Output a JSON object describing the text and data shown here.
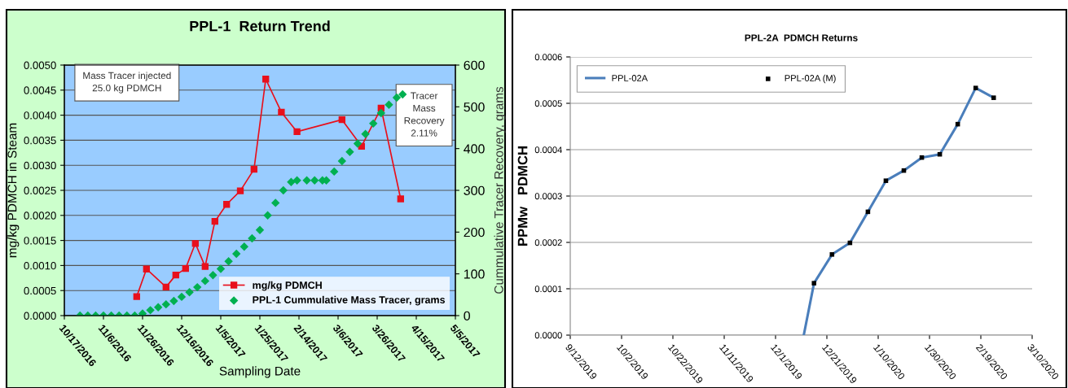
{
  "chart_data": [
    {
      "type": "line",
      "title": "PPL-1  Return Trend",
      "xlabel": "Sampling Date",
      "ylabel": "mg/kg PDMCH in Steam",
      "y2label": "Cummulative Tracer Recovery, grams",
      "xlim": [
        "2016-10-17",
        "2017-05-05"
      ],
      "xticks": [
        {
          "value": "2016-10-17",
          "label": "10/17/2016"
        },
        {
          "value": "2016-11-06",
          "label": "11/6/2016"
        },
        {
          "value": "2016-11-26",
          "label": "11/26/2016"
        },
        {
          "value": "2016-12-16",
          "label": "12/16/2016"
        },
        {
          "value": "2017-01-05",
          "label": "1/5/2017"
        },
        {
          "value": "2017-01-25",
          "label": "1/25/2017"
        },
        {
          "value": "2017-02-14",
          "label": "2/14/2017"
        },
        {
          "value": "2017-03-06",
          "label": "3/6/2017"
        },
        {
          "value": "2017-03-26",
          "label": "3/26/2017"
        },
        {
          "value": "2017-04-15",
          "label": "4/15/2017"
        },
        {
          "value": "2017-05-05",
          "label": "5/5/2017"
        }
      ],
      "ylim": [
        0,
        0.005
      ],
      "yticks": [
        {
          "value": 0,
          "label": "0.0000"
        },
        {
          "value": 0.0005,
          "label": "0.0005"
        },
        {
          "value": 0.001,
          "label": "0.0010"
        },
        {
          "value": 0.0015,
          "label": "0.0015"
        },
        {
          "value": 0.002,
          "label": "0.0020"
        },
        {
          "value": 0.0025,
          "label": "0.0025"
        },
        {
          "value": 0.003,
          "label": "0.0030"
        },
        {
          "value": 0.0035,
          "label": "0.0035"
        },
        {
          "value": 0.004,
          "label": "0.0040"
        },
        {
          "value": 0.0045,
          "label": "0.0045"
        },
        {
          "value": 0.005,
          "label": "0.0050"
        }
      ],
      "y2lim": [
        0,
        600
      ],
      "y2ticks": [
        0,
        100,
        200,
        300,
        400,
        500,
        600
      ],
      "grid": "y",
      "legend": "bottom right",
      "annotations": [
        "Mass Tracer injected\n25.0 kg PDMCH",
        "Tracer\nMass\nRecovery\n2.11%"
      ],
      "series": [
        {
          "name": "mg/kg PDMCH",
          "marker": "square",
          "color": "#e8101c",
          "x": [
            "2016-11-23",
            "2016-11-28",
            "2016-12-08",
            "2016-12-13",
            "2016-12-18",
            "2016-12-23",
            "2016-12-28",
            "2017-01-02",
            "2017-01-08",
            "2017-01-15",
            "2017-01-22",
            "2017-01-28",
            "2017-02-05",
            "2017-02-13",
            "2017-03-08",
            "2017-03-18",
            "2017-03-28",
            "2017-04-07"
          ],
          "values": [
            0.00038,
            0.00093,
            0.00057,
            0.00081,
            0.00094,
            0.00144,
            0.00098,
            0.00188,
            0.00222,
            0.00249,
            0.00292,
            0.00472,
            0.00406,
            0.00367,
            0.00391,
            0.00338,
            0.00414,
            0.00233
          ]
        },
        {
          "name": "PPL-1 Cummulative Mass Tracer, grams",
          "type": "scatter",
          "marker": "diamond",
          "axis": "y2",
          "color": "#00b050",
          "x": [
            "2016-10-25",
            "2016-10-29",
            "2016-11-02",
            "2016-11-06",
            "2016-11-10",
            "2016-11-14",
            "2016-11-18",
            "2016-11-22",
            "2016-11-26",
            "2016-11-30",
            "2016-12-04",
            "2016-12-08",
            "2016-12-12",
            "2016-12-16",
            "2016-12-20",
            "2016-12-24",
            "2016-12-28",
            "2017-01-01",
            "2017-01-05",
            "2017-01-09",
            "2017-01-13",
            "2017-01-17",
            "2017-01-21",
            "2017-01-25",
            "2017-01-29",
            "2017-02-02",
            "2017-02-06",
            "2017-02-10",
            "2017-02-13",
            "2017-02-18",
            "2017-02-22",
            "2017-02-26",
            "2017-02-28",
            "2017-03-04",
            "2017-03-08",
            "2017-03-12",
            "2017-03-16",
            "2017-03-20",
            "2017-03-24",
            "2017-03-28",
            "2017-04-01",
            "2017-04-05",
            "2017-04-08"
          ],
          "values": [
            0,
            0,
            0,
            0,
            0,
            0,
            0,
            0,
            5,
            13,
            20,
            27,
            35,
            45,
            56,
            68,
            83,
            97,
            112,
            130,
            148,
            165,
            185,
            205,
            240,
            270,
            300,
            320,
            324,
            324,
            324,
            324,
            324,
            345,
            370,
            392,
            412,
            435,
            460,
            485,
            505,
            522,
            530
          ]
        }
      ]
    },
    {
      "type": "line",
      "title": "PPL-2A  PDMCH Returns",
      "ylabel": "PPMw   PDMCH",
      "xlim": [
        "2019-09-12",
        "2020-03-10"
      ],
      "xticks": [
        {
          "value": "2019-09-12",
          "label": "9/12/2019"
        },
        {
          "value": "2019-10-02",
          "label": "10/2/2019"
        },
        {
          "value": "2019-10-22",
          "label": "10/22/2019"
        },
        {
          "value": "2019-11-11",
          "label": "11/11/2019"
        },
        {
          "value": "2019-12-01",
          "label": "12/1/2019"
        },
        {
          "value": "2019-12-21",
          "label": "12/21/2019"
        },
        {
          "value": "2020-01-10",
          "label": "1/10/2020"
        },
        {
          "value": "2020-01-30",
          "label": "1/30/2020"
        },
        {
          "value": "2020-02-19",
          "label": "2/19/2020"
        },
        {
          "value": "2020-03-10",
          "label": "3/10/2020"
        }
      ],
      "ylim": [
        0,
        0.0006
      ],
      "yticks": [
        {
          "value": 0,
          "label": "0.0000"
        },
        {
          "value": 0.0001,
          "label": "0.0001"
        },
        {
          "value": 0.0002,
          "label": "0.0002"
        },
        {
          "value": 0.0003,
          "label": "0.0003"
        },
        {
          "value": 0.0004,
          "label": "0.0004"
        },
        {
          "value": 0.0005,
          "label": "0.0005"
        },
        {
          "value": 0.0006,
          "label": "0.0006"
        }
      ],
      "grid": "y",
      "legend": "top",
      "series": [
        {
          "name": "PPL-02A",
          "marker": "none",
          "color": "#4a7ebb",
          "x": [
            "2019-12-12",
            "2019-12-16",
            "2019-12-23",
            "2019-12-30",
            "2020-01-06",
            "2020-01-13",
            "2020-01-20",
            "2020-01-27",
            "2020-02-03",
            "2020-02-10",
            "2020-02-17",
            "2020-02-24"
          ],
          "values": [
            0,
            0.000112,
            0.000174,
            0.000199,
            0.000266,
            0.000333,
            0.000355,
            0.000383,
            0.00039,
            0.000455,
            0.000533,
            0.000512
          ]
        },
        {
          "name": "PPL-02A (M)",
          "type": "scatter",
          "marker": "square",
          "color": "#000000",
          "x": [
            "2019-12-16",
            "2019-12-23",
            "2019-12-30",
            "2020-01-06",
            "2020-01-13",
            "2020-01-20",
            "2020-01-27",
            "2020-02-03",
            "2020-02-10",
            "2020-02-17",
            "2020-02-24"
          ],
          "values": [
            0.000112,
            0.000174,
            0.000199,
            0.000266,
            0.000333,
            0.000355,
            0.000383,
            0.00039,
            0.000455,
            0.000533,
            0.000512
          ]
        }
      ]
    }
  ]
}
